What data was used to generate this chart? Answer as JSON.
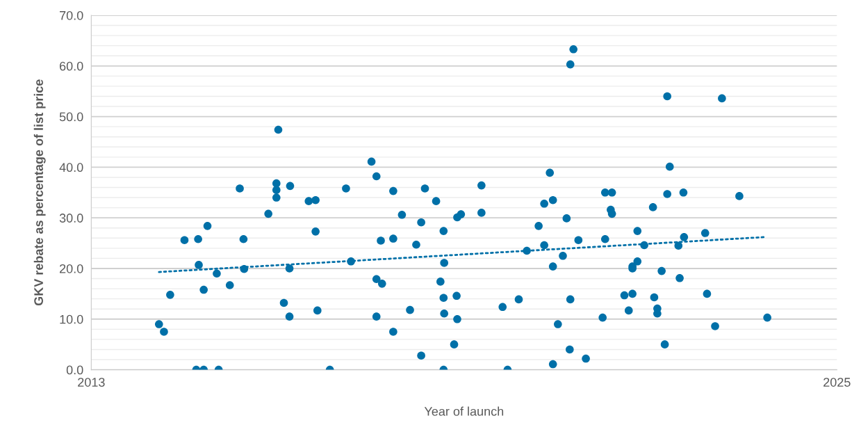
{
  "chart_data": {
    "type": "scatter",
    "xlabel": "Year of launch",
    "ylabel": "GKV rebate as percentage of list price",
    "xlim": [
      2013,
      2025
    ],
    "xticks": [
      2013,
      2025
    ],
    "ylim": [
      0,
      70
    ],
    "yticks": [
      {
        "value": 0,
        "label": "0.0"
      },
      {
        "value": 2,
        "label": null
      },
      {
        "value": 4,
        "label": null
      },
      {
        "value": 6,
        "label": null
      },
      {
        "value": 8,
        "label": null
      },
      {
        "value": 10,
        "label": "10.0"
      },
      {
        "value": 12,
        "label": null
      },
      {
        "value": 14,
        "label": null
      },
      {
        "value": 16,
        "label": null
      },
      {
        "value": 18,
        "label": null
      },
      {
        "value": 20,
        "label": "20.0"
      },
      {
        "value": 22,
        "label": null
      },
      {
        "value": 24,
        "label": null
      },
      {
        "value": 26,
        "label": null
      },
      {
        "value": 28,
        "label": null
      },
      {
        "value": 30,
        "label": "30.0"
      },
      {
        "value": 32,
        "label": null
      },
      {
        "value": 34,
        "label": null
      },
      {
        "value": 36,
        "label": null
      },
      {
        "value": 38,
        "label": null
      },
      {
        "value": 40,
        "label": "40.0"
      },
      {
        "value": 42,
        "label": null
      },
      {
        "value": 44,
        "label": null
      },
      {
        "value": 46,
        "label": null
      },
      {
        "value": 48,
        "label": null
      },
      {
        "value": 50,
        "label": "50.0"
      },
      {
        "value": 52,
        "label": null
      },
      {
        "value": 54,
        "label": null
      },
      {
        "value": 56,
        "label": null
      },
      {
        "value": 58,
        "label": null
      },
      {
        "value": 60,
        "label": "60.0"
      },
      {
        "value": 62,
        "label": null
      },
      {
        "value": 64,
        "label": null
      },
      {
        "value": 66,
        "label": null
      },
      {
        "value": 68,
        "label": null
      },
      {
        "value": 70,
        "label": "70.0"
      }
    ],
    "grid": "y",
    "series": [
      {
        "color": "#0070a8",
        "marker": "circle",
        "x": [
          2016.01,
          2015.98,
          2015.39,
          2016.2,
          2017.1,
          2015.98,
          2015.98,
          2016.5,
          2016.61,
          2015.85,
          2014.87,
          2016.61,
          2014.5,
          2014.72,
          2015.45,
          2014.73,
          2015.02,
          2015.46,
          2016.19,
          2014.27,
          2014.81,
          2015.23,
          2016.1,
          2016.19,
          2016.64,
          2014.09,
          2014.17,
          2014.69,
          2014.81,
          2015.05,
          2016.84,
          2020.76,
          2020.71,
          2017.51,
          2017.59,
          2020.38,
          2017.86,
          2018.37,
          2019.28,
          2018.55,
          2020.29,
          2020.43,
          2018.0,
          2018.31,
          2018.89,
          2018.95,
          2019.28,
          2018.67,
          2020.2,
          2020.65,
          2017.66,
          2017.86,
          2018.23,
          2020.84,
          2020.29,
          2020.01,
          2017.18,
          2018.68,
          2020.59,
          2020.43,
          2017.59,
          2017.68,
          2018.62,
          2018.67,
          2018.88,
          2019.62,
          2019.88,
          2020.71,
          2018.13,
          2018.68,
          2017.59,
          2018.89,
          2020.51,
          2017.86,
          2018.84,
          2018.31,
          2020.7,
          2020.96,
          2020.43,
          2018.67,
          2019.7,
          2022.27,
          2023.15,
          2022.31,
          2021.27,
          2021.38,
          2022.27,
          2022.53,
          2023.43,
          2022.04,
          2021.36,
          2021.38,
          2021.79,
          2022.88,
          2021.27,
          2022.54,
          2021.9,
          2022.45,
          2021.79,
          2021.71,
          2021.71,
          2022.18,
          2022.47,
          2021.58,
          2021.71,
          2022.06,
          2022.91,
          2021.65,
          2022.11,
          2022.11,
          2021.23,
          2023.88,
          2023.04,
          2022.23
        ],
        "values": [
          47.4,
          36.8,
          35.8,
          36.3,
          35.8,
          35.5,
          34.0,
          33.3,
          33.5,
          30.8,
          28.4,
          27.3,
          25.6,
          25.8,
          25.8,
          20.7,
          19.0,
          19.9,
          20.0,
          14.8,
          15.8,
          16.7,
          13.2,
          10.5,
          11.7,
          9.0,
          7.5,
          0,
          0,
          0,
          0,
          63.3,
          60.3,
          41.1,
          38.2,
          38.9,
          35.3,
          35.8,
          36.4,
          33.3,
          32.8,
          33.5,
          30.6,
          29.1,
          30.1,
          30.7,
          31.0,
          27.4,
          28.4,
          29.9,
          25.5,
          25.9,
          24.7,
          25.6,
          24.6,
          23.5,
          21.4,
          21.1,
          22.5,
          20.4,
          17.9,
          17.0,
          17.4,
          14.2,
          14.6,
          12.4,
          13.9,
          13.9,
          11.8,
          11.1,
          10.5,
          10.0,
          9.0,
          7.5,
          5.0,
          2.8,
          4.0,
          2.2,
          1.1,
          0,
          0,
          54.0,
          53.6,
          40.1,
          35.0,
          35.0,
          34.7,
          35.0,
          34.3,
          32.1,
          31.6,
          30.8,
          27.4,
          27.0,
          25.8,
          26.2,
          24.6,
          24.5,
          21.4,
          20.4,
          20.0,
          19.5,
          18.1,
          14.7,
          15.0,
          14.3,
          15.0,
          11.7,
          12.1,
          11.1,
          10.3,
          10.3,
          8.6,
          5.0
        ]
      },
      {
        "type": "line",
        "color": "#0070a8",
        "marker": "none",
        "line_style": "dotted",
        "x": [
          2014.09,
          2023.84
        ],
        "values": [
          19.3,
          26.2
        ]
      }
    ]
  }
}
